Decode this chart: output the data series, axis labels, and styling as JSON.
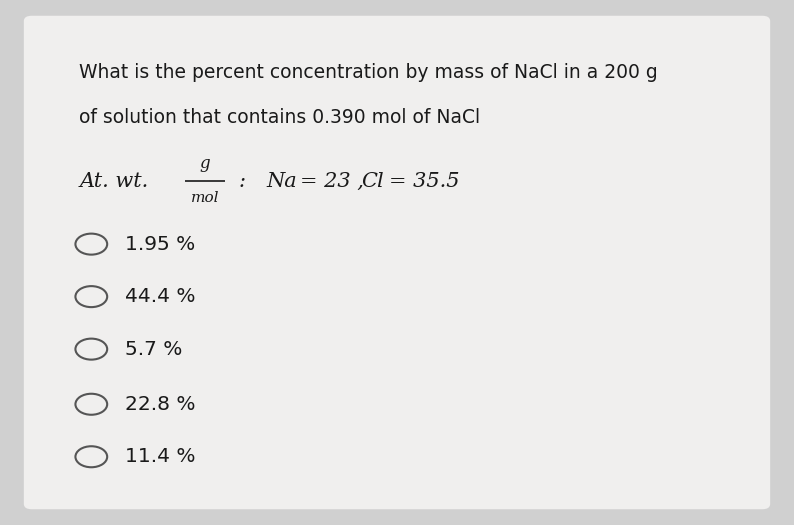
{
  "background_color": "#d0d0d0",
  "card_color": "#f0efee",
  "question_line1": "What is the percent concentration by mass of NaCl in a 200 g",
  "question_line2": "of solution that contains 0.390 mol of NaCl",
  "options": [
    "1.95 %",
    "44.4 %",
    "5.7 %",
    "22.8 %",
    "11.4 %"
  ],
  "text_color": "#1a1a1a",
  "option_color": "#1a1a1a",
  "circle_color": "#555555",
  "question_fontsize": 13.5,
  "atwt_fontsize": 15,
  "option_fontsize": 14.5
}
